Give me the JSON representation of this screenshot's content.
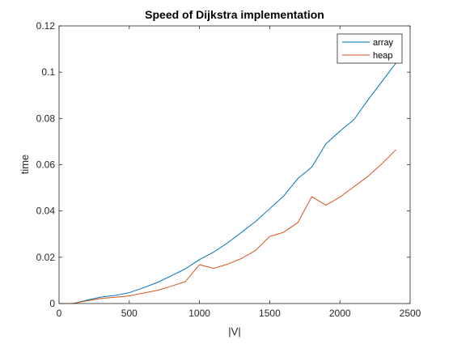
{
  "chart_data": {
    "type": "line",
    "title": "Speed of Dijkstra implementation",
    "xlabel": "|V|",
    "ylabel": "time",
    "xlim": [
      0,
      2500
    ],
    "ylim": [
      0,
      0.12
    ],
    "xticks": [
      0,
      500,
      1000,
      1500,
      2000,
      2500
    ],
    "yticks": [
      0,
      0.02,
      0.04,
      0.06,
      0.08,
      0.1,
      0.12
    ],
    "xtick_labels": [
      "0",
      "500",
      "1000",
      "1500",
      "2000",
      "2500"
    ],
    "ytick_labels": [
      "0",
      "0.02",
      "0.04",
      "0.06",
      "0.08",
      "0.1",
      "0.12"
    ],
    "grid": false,
    "legend": "top-right",
    "x": [
      0,
      100,
      200,
      300,
      400,
      500,
      600,
      700,
      800,
      900,
      1000,
      1100,
      1200,
      1300,
      1400,
      1500,
      1600,
      1700,
      1800,
      1900,
      2000,
      2100,
      2200,
      2300,
      2400
    ],
    "series": [
      {
        "name": "array",
        "color": "#0072BD",
        "values": [
          0,
          0,
          0.0015,
          0.0028,
          0.0035,
          0.0047,
          0.0068,
          0.0091,
          0.012,
          0.015,
          0.019,
          0.0222,
          0.0262,
          0.0308,
          0.0355,
          0.041,
          0.0465,
          0.054,
          0.059,
          0.069,
          0.0745,
          0.0795,
          0.088,
          0.096,
          0.104
        ]
      },
      {
        "name": "heap",
        "color": "#D95319",
        "values": [
          0,
          0,
          0.0012,
          0.0022,
          0.0027,
          0.0033,
          0.0045,
          0.0057,
          0.0075,
          0.0095,
          0.0168,
          0.0152,
          0.017,
          0.0195,
          0.023,
          0.029,
          0.0308,
          0.035,
          0.0462,
          0.0425,
          0.046,
          0.0505,
          0.055,
          0.0605,
          0.0665
        ]
      }
    ]
  }
}
